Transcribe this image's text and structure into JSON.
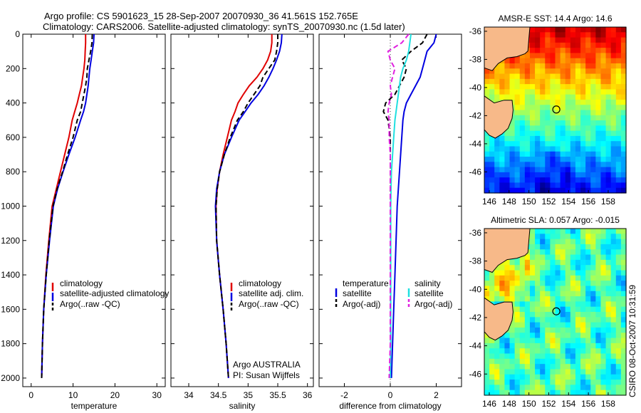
{
  "figure": {
    "title_line1": "Argo profile: CS 5901623_15 28-Sep-2007 20070930_36 41.561S 152.765E",
    "title_line2": "Climatology: CARS2006. Satellite-adjusted climatology: synTS_20070930.nc (1.5d later)",
    "side_label": "CSIRO 08-Oct-2007 10:31:59",
    "annotation_line1": "Argo AUSTRALIA",
    "annotation_line2": "PI: Susan Wijffels"
  },
  "legends": {
    "temperature_panel": [
      "climatology",
      "satellite-adjusted climatology",
      "Argo(..raw -QC)"
    ],
    "salinity_panel": [
      "climatology",
      "satellite adj. clim.",
      "Argo(..raw -QC)"
    ],
    "difference_panel": {
      "temperature_header": "temperature",
      "salinity_header": "salinity",
      "temperature_items": [
        "satellite",
        "Argo(-adj)"
      ],
      "salinity_items": [
        "satellite",
        "Argo(-adj)"
      ]
    }
  },
  "colors": {
    "climatology": "#e00000",
    "satellite": "#0000e0",
    "argo": "#000000",
    "temp_diff_satellite": "#0000e0",
    "sal_diff_satellite": "#20e0e0",
    "sal_diff_argo": "#e020e0",
    "land": "#f7b989"
  },
  "chart_data": [
    {
      "type": "line",
      "xlabel": "temperature",
      "ylabel": "",
      "xlim": [
        -2,
        32
      ],
      "ylim": [
        2050,
        0
      ],
      "y_reversed": true,
      "xticks": [
        0,
        10,
        20,
        30
      ],
      "yticks": [
        0,
        200,
        400,
        600,
        800,
        1000,
        1200,
        1400,
        1600,
        1800,
        2000
      ],
      "series": [
        {
          "name": "climatology",
          "color": "#e00000",
          "dash": "solid",
          "x": [
            13.0,
            13.0,
            12.9,
            12.8,
            12.6,
            12.3,
            12.0,
            11.5,
            11.0,
            10.4,
            9.8,
            9.0,
            8.0,
            7.0,
            6.0,
            5.0,
            4.2,
            3.5,
            3.0,
            2.7,
            2.5
          ],
          "y": [
            0,
            50,
            100,
            150,
            200,
            250,
            300,
            350,
            400,
            450,
            500,
            600,
            700,
            800,
            900,
            1000,
            1200,
            1400,
            1600,
            1800,
            2000
          ]
        },
        {
          "name": "satellite-adjusted climatology",
          "color": "#0000e0",
          "dash": "solid",
          "x": [
            15.0,
            14.9,
            14.6,
            14.3,
            14.0,
            13.8,
            13.6,
            13.3,
            13.0,
            12.5,
            11.8,
            10.5,
            9.0,
            7.6,
            6.3,
            5.3,
            4.4,
            3.6,
            3.0,
            2.7,
            2.5
          ],
          "y": [
            0,
            50,
            100,
            150,
            200,
            250,
            300,
            350,
            400,
            450,
            500,
            600,
            700,
            800,
            900,
            1000,
            1200,
            1400,
            1600,
            1800,
            2000
          ]
        },
        {
          "name": "Argo(..raw -QC)",
          "color": "#000000",
          "dash": "dashed",
          "x": [
            14.6,
            14.5,
            14.2,
            13.8,
            13.4,
            13.3,
            13.0,
            12.6,
            12.2,
            11.8,
            11.0,
            10.0,
            8.7,
            7.5,
            6.2,
            5.2,
            4.3,
            3.6,
            3.0,
            2.7,
            2.5
          ],
          "y": [
            0,
            50,
            100,
            150,
            200,
            250,
            300,
            350,
            400,
            450,
            500,
            600,
            700,
            800,
            900,
            1000,
            1200,
            1400,
            1600,
            1800,
            2000
          ]
        }
      ]
    },
    {
      "type": "line",
      "xlabel": "salinity",
      "ylabel": "",
      "xlim": [
        33.7,
        36.1
      ],
      "ylim": [
        2050,
        0
      ],
      "y_reversed": true,
      "xticks": [
        34,
        34.5,
        35,
        35.5,
        36
      ],
      "series": [
        {
          "name": "climatology",
          "color": "#e00000",
          "dash": "solid",
          "x": [
            35.4,
            35.4,
            35.38,
            35.33,
            35.25,
            35.15,
            35.02,
            34.92,
            34.83,
            34.78,
            34.72,
            34.65,
            34.58,
            34.52,
            34.48,
            34.46,
            34.47,
            34.52,
            34.58,
            34.63,
            34.67
          ],
          "y": [
            0,
            50,
            100,
            150,
            200,
            250,
            300,
            350,
            400,
            450,
            500,
            600,
            700,
            800,
            900,
            1000,
            1200,
            1400,
            1600,
            1800,
            2000
          ]
        },
        {
          "name": "satellite adj. clim.",
          "color": "#0000e0",
          "dash": "solid",
          "x": [
            35.57,
            35.56,
            35.53,
            35.48,
            35.42,
            35.35,
            35.27,
            35.17,
            35.05,
            34.95,
            34.85,
            34.72,
            34.6,
            34.52,
            34.47,
            34.45,
            34.47,
            34.52,
            34.58,
            34.63,
            34.67
          ],
          "y": [
            0,
            50,
            100,
            150,
            200,
            250,
            300,
            350,
            400,
            450,
            500,
            600,
            700,
            800,
            900,
            1000,
            1200,
            1400,
            1600,
            1800,
            2000
          ]
        },
        {
          "name": "Argo(..raw -QC)",
          "color": "#000000",
          "dash": "dashed",
          "x": [
            35.5,
            35.5,
            35.48,
            35.45,
            35.35,
            35.25,
            35.2,
            35.1,
            35.0,
            34.92,
            34.82,
            34.7,
            34.6,
            34.52,
            34.48,
            34.46,
            34.47,
            34.52,
            34.58,
            34.63,
            34.67
          ],
          "y": [
            0,
            50,
            100,
            150,
            200,
            250,
            300,
            350,
            400,
            450,
            500,
            600,
            700,
            800,
            900,
            1000,
            1200,
            1400,
            1600,
            1800,
            2000
          ]
        }
      ]
    },
    {
      "type": "line",
      "xlabel": "difference from climatology",
      "ylabel": "",
      "xlim": [
        -3.1,
        3.1
      ],
      "ylim": [
        2050,
        0
      ],
      "y_reversed": true,
      "xticks": [
        -2,
        0,
        2
      ],
      "series": [
        {
          "name": "temperature satellite",
          "color": "#0000e0",
          "dash": "solid",
          "x": [
            2.0,
            1.9,
            1.6,
            1.5,
            1.4,
            1.3,
            1.1,
            0.9,
            0.7,
            0.6,
            0.55,
            0.5,
            0.45,
            0.4,
            0.35,
            0.3,
            0.25,
            0.2,
            0.15,
            0.1,
            0.05
          ],
          "y": [
            0,
            50,
            100,
            150,
            200,
            250,
            300,
            350,
            400,
            450,
            500,
            600,
            700,
            800,
            900,
            1000,
            1200,
            1400,
            1600,
            1800,
            2000
          ]
        },
        {
          "name": "temperature Argo(-adj)",
          "color": "#000000",
          "dash": "dashed",
          "x": [
            1.6,
            1.4,
            0.9,
            0.5,
            0.7,
            0.6,
            0.4,
            0.2,
            -0.2,
            -0.3,
            -0.1,
            0.0,
            0.0,
            0.0,
            0.0,
            0.0,
            0.0,
            0.0,
            0.0,
            0.0,
            0.0
          ],
          "y": [
            0,
            50,
            100,
            150,
            200,
            250,
            300,
            350,
            400,
            450,
            500,
            600,
            700,
            800,
            900,
            1000,
            1200,
            1400,
            1600,
            1800,
            2000
          ]
        },
        {
          "name": "salinity satellite",
          "color": "#20e0e0",
          "dash": "solid",
          "x": [
            0.9,
            0.85,
            0.8,
            0.7,
            0.55,
            0.45,
            0.4,
            0.35,
            0.3,
            0.25,
            0.2,
            0.15,
            0.1,
            0.05,
            0.03,
            0.02,
            0.02,
            0.02,
            0.02,
            0.02,
            0.0
          ],
          "y": [
            0,
            50,
            100,
            150,
            200,
            250,
            300,
            350,
            400,
            450,
            500,
            600,
            700,
            800,
            900,
            1000,
            1200,
            1400,
            1600,
            1800,
            2000
          ]
        },
        {
          "name": "salinity Argo(-adj)",
          "color": "#e020e0",
          "dash": "dashed",
          "x": [
            0.8,
            0.5,
            -0.1,
            0.0,
            0.2,
            0.1,
            0.0,
            0.05,
            -0.05,
            -0.1,
            -0.05,
            -0.05,
            0.0,
            0.0,
            0.0,
            0.0,
            0.0,
            0.0,
            0.0,
            0.0,
            -0.05
          ],
          "y": [
            0,
            50,
            100,
            150,
            200,
            250,
            300,
            350,
            400,
            450,
            500,
            600,
            700,
            800,
            900,
            1000,
            1200,
            1400,
            1600,
            1800,
            2000
          ]
        }
      ]
    },
    {
      "type": "heatmap",
      "title": "AMSR-E SST: 14.4 Argo: 14.6",
      "xlim": [
        145.5,
        159.8
      ],
      "ylim": [
        -47.5,
        -35.7
      ],
      "xticks": [
        146,
        148,
        150,
        152,
        154,
        156,
        158
      ],
      "yticks": [
        -36,
        -38,
        -40,
        -42,
        -44,
        -46
      ],
      "marker": {
        "lon": 152.765,
        "lat": -41.561
      },
      "colormap": "jet",
      "clim": [
        8,
        22
      ]
    },
    {
      "type": "heatmap",
      "title": "Altimetric SLA: 0.057 Argo: -0.015",
      "xlim": [
        145.5,
        159.8
      ],
      "ylim": [
        -47.5,
        -35.7
      ],
      "xticks": [
        146,
        148,
        150,
        152,
        154,
        156,
        158
      ],
      "yticks": [
        -36,
        -38,
        -40,
        -42,
        -44,
        -46
      ],
      "marker": {
        "lon": 152.765,
        "lat": -41.561
      },
      "colormap": "jet",
      "clim": [
        -1,
        1
      ]
    }
  ]
}
